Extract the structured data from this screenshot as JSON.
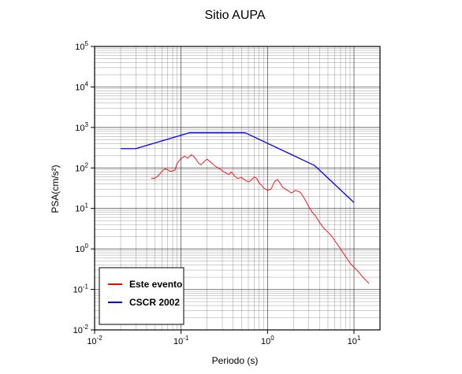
{
  "chart_data": {
    "type": "line",
    "title": "Sitio AUPA",
    "xlabel": "Periodo (s)",
    "ylabel": "PSA(cm/s²)",
    "x_scale": "log",
    "y_scale": "log",
    "xlim": [
      0.01,
      20
    ],
    "ylim": [
      0.01,
      100000
    ],
    "grid": true,
    "legend_position": "bottom-left",
    "x_ticks": [
      {
        "base": "10",
        "exp": "-2",
        "value": 0.01
      },
      {
        "base": "10",
        "exp": "-1",
        "value": 0.1
      },
      {
        "base": "10",
        "exp": "0",
        "value": 1
      },
      {
        "base": "10",
        "exp": "1",
        "value": 10
      }
    ],
    "y_ticks": [
      {
        "base": "10",
        "exp": "-2",
        "value": 0.01
      },
      {
        "base": "10",
        "exp": "-1",
        "value": 0.1
      },
      {
        "base": "10",
        "exp": "0",
        "value": 1
      },
      {
        "base": "10",
        "exp": "1",
        "value": 10
      },
      {
        "base": "10",
        "exp": "2",
        "value": 100
      },
      {
        "base": "10",
        "exp": "3",
        "value": 1000
      },
      {
        "base": "10",
        "exp": "4",
        "value": 10000
      },
      {
        "base": "10",
        "exp": "5",
        "value": 100000
      }
    ],
    "series": [
      {
        "name": "Este evento",
        "color": "#ff0000",
        "points": [
          [
            0.045,
            55
          ],
          [
            0.05,
            56
          ],
          [
            0.055,
            65
          ],
          [
            0.06,
            82
          ],
          [
            0.065,
            95
          ],
          [
            0.07,
            90
          ],
          [
            0.075,
            82
          ],
          [
            0.08,
            85
          ],
          [
            0.085,
            88
          ],
          [
            0.09,
            130
          ],
          [
            0.1,
            170
          ],
          [
            0.11,
            195
          ],
          [
            0.12,
            175
          ],
          [
            0.13,
            210
          ],
          [
            0.14,
            195
          ],
          [
            0.15,
            160
          ],
          [
            0.16,
            130
          ],
          [
            0.17,
            120
          ],
          [
            0.18,
            135
          ],
          [
            0.2,
            165
          ],
          [
            0.22,
            140
          ],
          [
            0.25,
            110
          ],
          [
            0.28,
            95
          ],
          [
            0.3,
            85
          ],
          [
            0.33,
            75
          ],
          [
            0.36,
            68
          ],
          [
            0.38,
            80
          ],
          [
            0.42,
            62
          ],
          [
            0.45,
            55
          ],
          [
            0.5,
            58
          ],
          [
            0.55,
            50
          ],
          [
            0.6,
            45
          ],
          [
            0.65,
            50
          ],
          [
            0.7,
            60
          ],
          [
            0.75,
            55
          ],
          [
            0.8,
            42
          ],
          [
            0.85,
            38
          ],
          [
            0.9,
            32
          ],
          [
            1.0,
            28
          ],
          [
            1.1,
            30
          ],
          [
            1.2,
            45
          ],
          [
            1.3,
            52
          ],
          [
            1.4,
            42
          ],
          [
            1.5,
            33
          ],
          [
            1.7,
            28
          ],
          [
            1.9,
            24
          ],
          [
            2.1,
            28
          ],
          [
            2.4,
            25
          ],
          [
            2.7,
            17
          ],
          [
            3.0,
            11
          ],
          [
            3.3,
            8
          ],
          [
            3.6,
            6.5
          ],
          [
            4.0,
            4.5
          ],
          [
            4.5,
            3.2
          ],
          [
            5.0,
            2.6
          ],
          [
            5.5,
            2.1
          ],
          [
            6.0,
            1.6
          ],
          [
            7.0,
            1.0
          ],
          [
            8.0,
            0.65
          ],
          [
            9.0,
            0.45
          ],
          [
            10.0,
            0.35
          ],
          [
            11.0,
            0.29
          ],
          [
            12.0,
            0.23
          ],
          [
            13.0,
            0.19
          ],
          [
            15.0,
            0.14
          ]
        ]
      },
      {
        "name": "CSCR 2002",
        "color": "#0000ff",
        "points": [
          [
            0.02,
            300
          ],
          [
            0.03,
            300
          ],
          [
            0.125,
            740
          ],
          [
            0.55,
            740
          ],
          [
            3.5,
            115
          ],
          [
            10.0,
            14
          ]
        ]
      }
    ]
  }
}
